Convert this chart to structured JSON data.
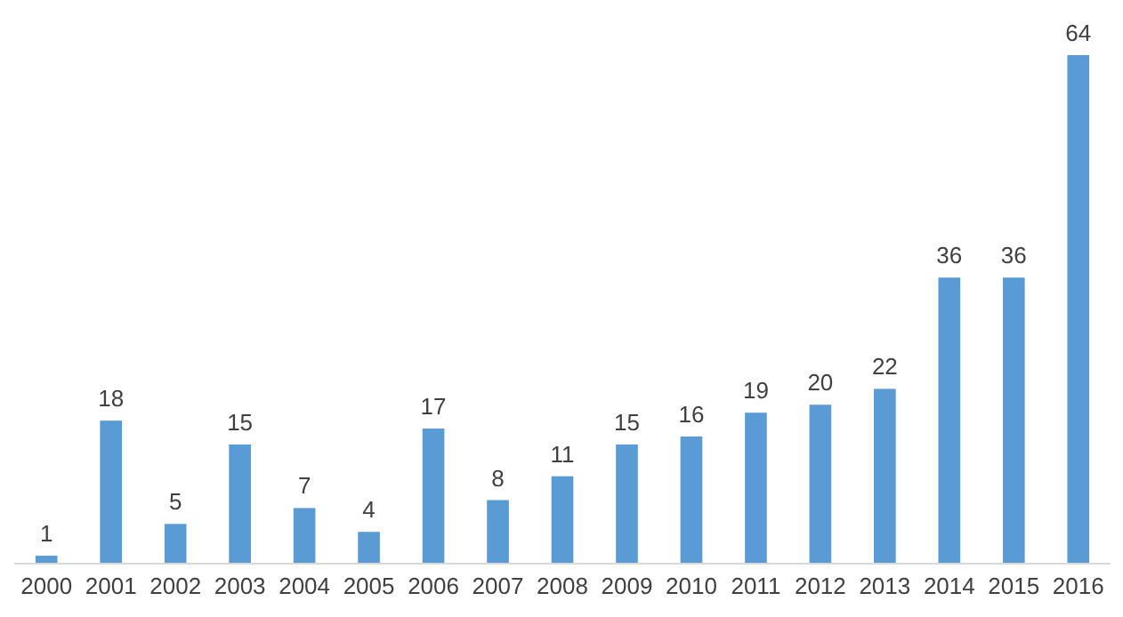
{
  "chart_data": {
    "type": "bar",
    "categories": [
      "2000",
      "2001",
      "2002",
      "2003",
      "2004",
      "2005",
      "2006",
      "2007",
      "2008",
      "2009",
      "2010",
      "2011",
      "2012",
      "2013",
      "2014",
      "2015",
      "2016"
    ],
    "values": [
      1,
      18,
      5,
      15,
      7,
      4,
      17,
      8,
      11,
      15,
      16,
      19,
      20,
      22,
      36,
      36,
      64
    ],
    "color": "#5b9bd5",
    "data_labels": true
  }
}
